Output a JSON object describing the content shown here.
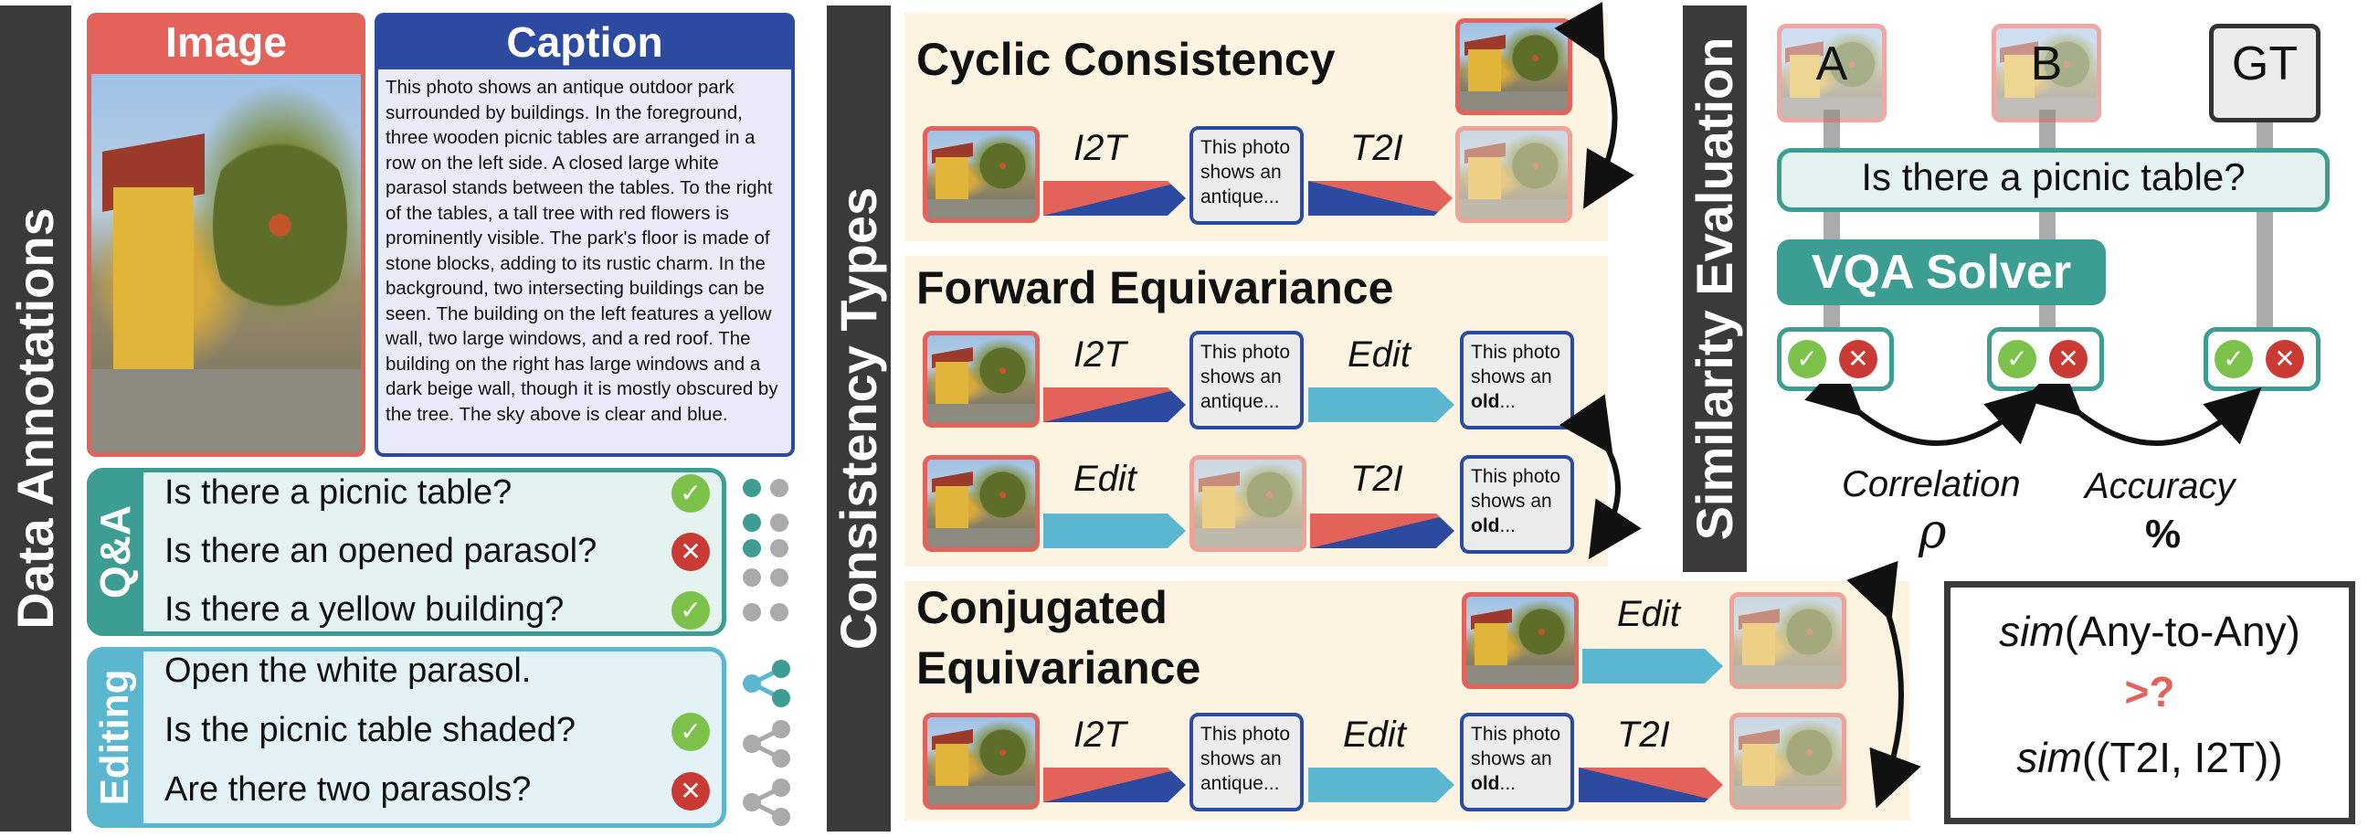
{
  "sections": {
    "data_annotations": "Data Annotations",
    "consistency_types": "Consistency Types",
    "similarity_evaluation": "Similarity Evaluation"
  },
  "annotations": {
    "image_header": "Image",
    "caption_header": "Caption",
    "caption_text": "This photo shows an antique outdoor park surrounded by buildings. In the foreground, three wooden picnic tables are arranged in a row on the left side. A closed large white parasol stands between the tables. To the right of the tables, a tall tree with red flowers is prominently visible. The park's floor is made of stone blocks, adding to its rustic charm. In the background, two intersecting buildings can be seen. The building on the left features a yellow wall, two large windows, and a red roof. The building on the right has large windows and a dark beige wall, though it is mostly obscured by the tree. The sky above is clear and blue.",
    "qa_label": "Q&A",
    "qa": [
      {
        "text": "Is there a picnic table?",
        "answer": "yes"
      },
      {
        "text": "Is there an opened parasol?",
        "answer": "no"
      },
      {
        "text": "Is there a yellow building?",
        "answer": "yes"
      }
    ],
    "editing_label": "Editing",
    "editing": [
      {
        "text": "Open the white parasol.",
        "answer": ""
      },
      {
        "text": "Is the picnic table shaded?",
        "answer": "yes"
      },
      {
        "text": "Are there two parasols?",
        "answer": "no"
      }
    ]
  },
  "consistency": {
    "cyclic": {
      "title": "Cyclic Consistency",
      "op1": "I2T",
      "op2": "T2I",
      "text": "This photo shows an antique..."
    },
    "forward": {
      "title": "Forward Equivariance",
      "row1_op1": "I2T",
      "row1_op2": "Edit",
      "row1_text1": "This photo shows an antique...",
      "row1_text2_pre": "This photo shows an ",
      "row1_text2_bold": "old",
      "row1_text2_post": "...",
      "row2_op1": "Edit",
      "row2_op2": "T2I",
      "row2_text_pre": "This photo shows an ",
      "row2_text_bold": "old",
      "row2_text_post": "..."
    },
    "conjugated": {
      "title_line1": "Conjugated",
      "title_line2": "Equivariance",
      "top_op": "Edit",
      "op1": "I2T",
      "op2": "Edit",
      "op3": "T2I",
      "text1": "This photo shows an antique...",
      "text2_pre": "This photo shows an ",
      "text2_bold": "old",
      "text2_post": "..."
    }
  },
  "similarity": {
    "labels": [
      "A",
      "B",
      "GT"
    ],
    "question": "Is there a picnic table?",
    "solver": "VQA Solver",
    "correlation": "Correlation",
    "rho": "ρ",
    "accuracy": "Accuracy",
    "percent": "%",
    "sim_line1_fn": "sim",
    "sim_line1_arg": "(Any-to-Any)",
    "sim_op": ">?",
    "sim_line2_fn": "sim",
    "sim_line2_arg": "((T2I, I2T))"
  },
  "colors": {
    "red": "#e3625a",
    "blue": "#2b4aa0",
    "teal": "#3c9e92",
    "cream": "#fdf3e1",
    "dark": "#3a3a3a",
    "cyan": "#5bb7cf"
  }
}
